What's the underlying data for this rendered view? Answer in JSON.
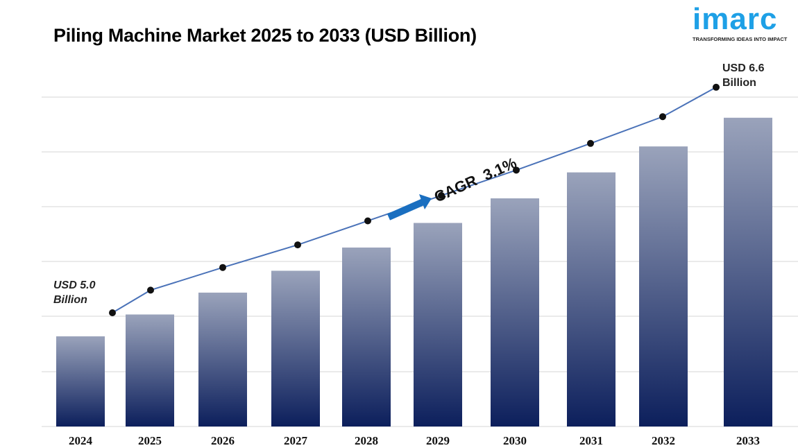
{
  "brand": {
    "name": "imarc",
    "tagline": "TRANSFORMING IDEAS INTO IMPACT"
  },
  "chart_data": {
    "type": "bar",
    "title": "Piling Machine Market 2025 to 2033 (USD Billion)",
    "categories": [
      "2024",
      "2025",
      "2026",
      "2027",
      "2028",
      "2029",
      "2030",
      "2031",
      "2032",
      "2033"
    ],
    "values": [
      5.0,
      5.16,
      5.32,
      5.48,
      5.65,
      5.83,
      6.01,
      6.2,
      6.39,
      6.6
    ],
    "trend_line": true,
    "xlabel": "",
    "ylabel": "",
    "grid": true,
    "annotations": {
      "start_line1": "USD 5.0",
      "start_line2": "Billion",
      "end_line1": "USD 6.6",
      "end_line2": "Billion",
      "cagr": "CAGR  3.1%"
    },
    "colors": {
      "bar_top": "#9aa3bb",
      "bar_bottom": "#0c1f5c",
      "line": "#4a72b8",
      "arrow": "#1a6fc0"
    }
  }
}
